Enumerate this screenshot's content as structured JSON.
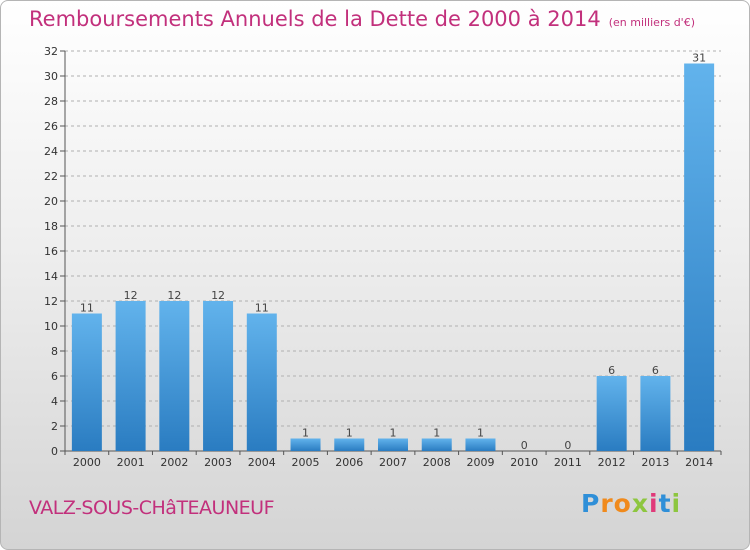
{
  "header": {
    "title": "Remboursements Annuels de la Dette de 2000 à 2014",
    "unit": "(en milliers d'€)"
  },
  "footer": {
    "commune": "VALZ-SOUS-CHâTEAUNEUF",
    "logo_text": "Proxiti",
    "logo_letters": [
      {
        "ch": "P",
        "color": "#2f8fd8"
      },
      {
        "ch": "r",
        "color": "#f08a1c"
      },
      {
        "ch": "o",
        "color": "#f08a1c"
      },
      {
        "ch": "x",
        "color": "#8dc63f"
      },
      {
        "ch": "i",
        "color": "#e03a7a"
      },
      {
        "ch": "t",
        "color": "#2f8fd8"
      },
      {
        "ch": "i",
        "color": "#8dc63f"
      }
    ]
  },
  "colors": {
    "title": "#c2307c",
    "bar_light": "#62b3ec",
    "bar_dark": "#2a7cc1",
    "grid": "#b0b0b0"
  },
  "chart_data": {
    "type": "bar",
    "title": "Remboursements Annuels de la Dette de 2000 à 2014",
    "subtitle": "(en milliers d'€)",
    "xlabel": "",
    "ylabel": "",
    "categories": [
      "2000",
      "2001",
      "2002",
      "2003",
      "2004",
      "2005",
      "2006",
      "2007",
      "2008",
      "2009",
      "2010",
      "2011",
      "2012",
      "2013",
      "2014"
    ],
    "values": [
      11,
      12,
      12,
      12,
      11,
      1,
      1,
      1,
      1,
      1,
      0,
      0,
      6,
      6,
      31
    ],
    "ylim": [
      0,
      32
    ],
    "yticks": [
      0,
      2,
      4,
      6,
      8,
      10,
      12,
      14,
      16,
      18,
      20,
      22,
      24,
      26,
      28,
      30,
      32
    ],
    "grid": "horizontal dashed",
    "legend": "none"
  }
}
